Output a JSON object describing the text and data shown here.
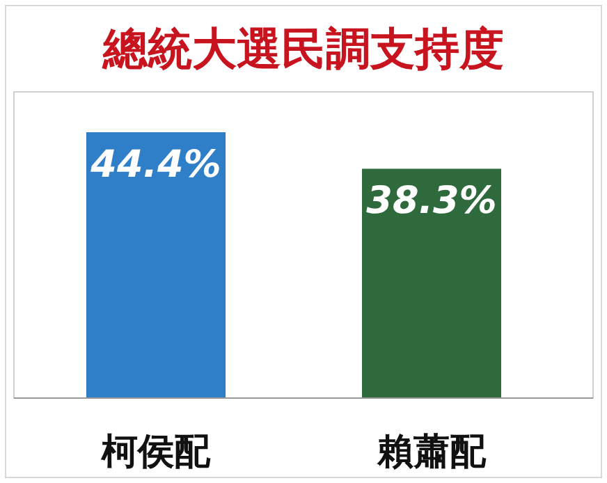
{
  "chart_data": {
    "type": "bar",
    "title": "總統大選民調支持度",
    "categories": [
      "柯侯配",
      "賴蕭配"
    ],
    "values": [
      44.4,
      38.3
    ],
    "colors": [
      "#2f7fc8",
      "#2e6a3c"
    ],
    "value_labels": [
      "44.4%",
      "38.3%"
    ]
  }
}
